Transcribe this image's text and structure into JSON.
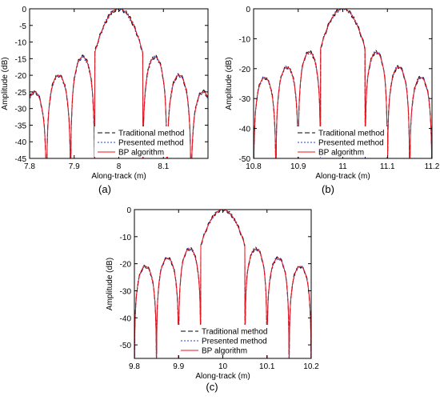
{
  "figure": {
    "panels": [
      {
        "label": "(a)"
      },
      {
        "label": "(b)"
      },
      {
        "label": "(c)"
      }
    ]
  },
  "chart_data": [
    {
      "type": "line",
      "panel": "(a)",
      "xlabel": "Along-track (m)",
      "ylabel": "Amplitude (dB)",
      "xlim": [
        7.8,
        8.2
      ],
      "ylim": [
        -45,
        0
      ],
      "xticks": [
        "7.8",
        "7.9",
        "8",
        "8.1"
      ],
      "yticks": [
        "0",
        "-5",
        "-10",
        "-15",
        "-20",
        "-25",
        "-30",
        "-35",
        "-40",
        "-45"
      ],
      "grid": false,
      "legend_position": "bottom-center",
      "center": 8.0,
      "lobe_spacing": 0.054,
      "peak_sidelobes": [
        -14.5,
        -20.0,
        -25.0
      ],
      "series": [
        {
          "name": "Traditional method",
          "color": "#000000",
          "style": "dashed"
        },
        {
          "name": "Presented method",
          "color": "#1f3fd0",
          "style": "dotted"
        },
        {
          "name": "BP algorithm",
          "color": "#e8141a",
          "style": "solid"
        }
      ]
    },
    {
      "type": "line",
      "panel": "(b)",
      "xlabel": "Along-track (m)",
      "ylabel": "Amplitude (dB)",
      "xlim": [
        10.8,
        11.2
      ],
      "ylim": [
        -50,
        0
      ],
      "xticks": [
        "10.8",
        "10.9",
        "11",
        "11.1",
        "11.2"
      ],
      "yticks": [
        "0",
        "-10",
        "-20",
        "-30",
        "-40",
        "-50"
      ],
      "grid": false,
      "legend_position": "bottom-center",
      "center": 11.0,
      "lobe_spacing": 0.05,
      "peak_sidelobes": [
        -14.5,
        -19.5,
        -23.0
      ],
      "series": [
        {
          "name": "Traditional method",
          "color": "#000000",
          "style": "dashed"
        },
        {
          "name": "Presented method",
          "color": "#1f3fd0",
          "style": "dotted"
        },
        {
          "name": "BP algorithm",
          "color": "#e8141a",
          "style": "solid"
        }
      ]
    },
    {
      "type": "line",
      "panel": "(c)",
      "xlabel": "Along-track (m)",
      "ylabel": "Amplitude (dB)",
      "xlim": [
        9.8,
        10.2
      ],
      "ylim": [
        -55,
        0
      ],
      "xticks": [
        "9.8",
        "9.9",
        "10",
        "10.1",
        "10.2"
      ],
      "yticks": [
        "0",
        "-10",
        "-20",
        "-30",
        "-40",
        "-50"
      ],
      "grid": false,
      "legend_position": "bottom-center",
      "center": 10.0,
      "lobe_spacing": 0.05,
      "peak_sidelobes": [
        -14.5,
        -18.0,
        -21.0,
        -24.0,
        -27.0
      ],
      "series": [
        {
          "name": "Traditional method",
          "color": "#000000",
          "style": "dashed"
        },
        {
          "name": "Presented method",
          "color": "#1f3fd0",
          "style": "dotted"
        },
        {
          "name": "BP algorithm",
          "color": "#e8141a",
          "style": "solid"
        }
      ]
    }
  ]
}
